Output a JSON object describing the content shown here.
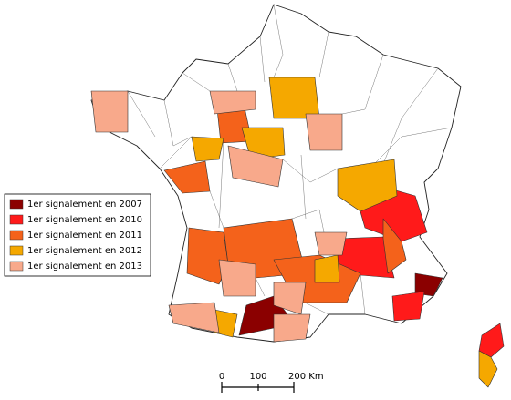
{
  "legend": {
    "items": [
      {
        "label": "1er signalement en 2007",
        "color": "#8b0000"
      },
      {
        "label": "1er signalement en 2010",
        "color": "#ff1a1a"
      },
      {
        "label": "1er signalement en 2011",
        "color": "#f4621b"
      },
      {
        "label": "1er signalement en 2012",
        "color": "#f5a800"
      },
      {
        "label": "1er signalement en 2013",
        "color": "#f8a98b"
      }
    ]
  },
  "scale": {
    "labels": [
      "0",
      "100",
      "200 Km"
    ]
  }
}
